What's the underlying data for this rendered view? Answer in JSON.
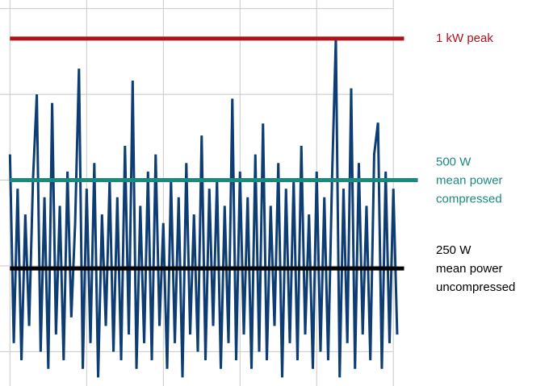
{
  "chart_data": {
    "type": "line",
    "xlim": [
      -0.13,
      7.03
    ],
    "ylim": [
      -0.4,
      4.1
    ],
    "xticks": [
      0,
      1,
      2,
      3,
      4,
      5
    ],
    "yticks": [
      0,
      1,
      2,
      3,
      4
    ],
    "grid": true,
    "series": [
      {
        "color": "#0d3d73",
        "x": [
          0,
          0.05,
          0.1,
          0.15,
          0.2,
          0.25,
          0.3,
          0.35,
          0.4,
          0.45,
          0.5,
          0.55,
          0.6,
          0.65,
          0.7,
          0.75,
          0.8,
          0.85,
          0.9,
          0.95,
          1,
          1.05,
          1.1,
          1.15,
          1.2,
          1.25,
          1.3,
          1.35,
          1.4,
          1.45,
          1.5,
          1.55,
          1.6,
          1.65,
          1.7,
          1.75,
          1.8,
          1.85,
          1.9,
          1.95,
          2,
          2.05,
          2.1,
          2.15,
          2.2,
          2.25,
          2.3,
          2.35,
          2.4,
          2.45,
          2.5,
          2.55,
          2.6,
          2.65,
          2.7,
          2.75,
          2.8,
          2.85,
          2.9,
          2.95,
          3,
          3.05,
          3.1,
          3.15,
          3.2,
          3.25,
          3.3,
          3.35,
          3.4,
          3.45,
          3.5,
          3.55,
          3.6,
          3.65,
          3.7,
          3.75,
          3.8,
          3.85,
          3.9,
          3.95,
          4,
          4.05,
          4.1,
          4.15,
          4.2,
          4.25,
          4.3,
          4.35,
          4.4,
          4.45,
          4.5,
          4.55,
          4.6,
          4.65,
          4.7,
          4.75,
          4.8,
          4.85,
          4.9,
          4.95,
          5,
          5.05
        ],
        "values": [
          2.3,
          0.1,
          1.9,
          -0.1,
          1.6,
          0.3,
          2.0,
          3.0,
          0.0,
          1.8,
          -0.2,
          2.9,
          0.2,
          1.7,
          -0.1,
          2.1,
          0.4,
          1.5,
          3.3,
          -0.2,
          1.9,
          0.1,
          2.2,
          -0.3,
          1.6,
          0.3,
          2.0,
          0.0,
          1.8,
          -0.1,
          2.4,
          0.2,
          3.16,
          -0.2,
          1.7,
          0.1,
          2.1,
          -0.1,
          2.3,
          0.3,
          1.5,
          -0.2,
          2.0,
          0.1,
          1.8,
          -0.3,
          2.2,
          0.2,
          1.6,
          0.0,
          2.52,
          -0.1,
          1.9,
          0.3,
          2.0,
          -0.2,
          1.7,
          0.1,
          2.95,
          -0.1,
          2.1,
          0.2,
          1.8,
          -0.2,
          2.3,
          0.0,
          2.66,
          -0.1,
          1.7,
          0.3,
          2.2,
          -0.3,
          1.9,
          0.1,
          2.0,
          -0.1,
          2.4,
          0.2,
          1.6,
          -0.2,
          2.1,
          0.0,
          1.8,
          -0.1,
          2.0,
          3.65,
          -0.3,
          1.9,
          0.1,
          3.07,
          -0.2,
          2.2,
          0.2,
          1.7,
          -0.1,
          2.3,
          2.67,
          -0.2,
          2.1,
          0.1,
          1.9,
          0.2
        ]
      }
    ],
    "reference_lines": [
      {
        "y": 3.65,
        "x_end": 5.14,
        "color": "#b0121b",
        "label": [
          "1 kW peak"
        ]
      },
      {
        "y": 2.0,
        "x_end": 5.32,
        "color": "#1a8a7e",
        "label": [
          "500 W",
          "mean power",
          "compressed"
        ]
      },
      {
        "y": 0.97,
        "x_end": 5.14,
        "color": "#000000",
        "label": [
          "250 W",
          "mean power",
          "uncompressed"
        ]
      }
    ]
  }
}
